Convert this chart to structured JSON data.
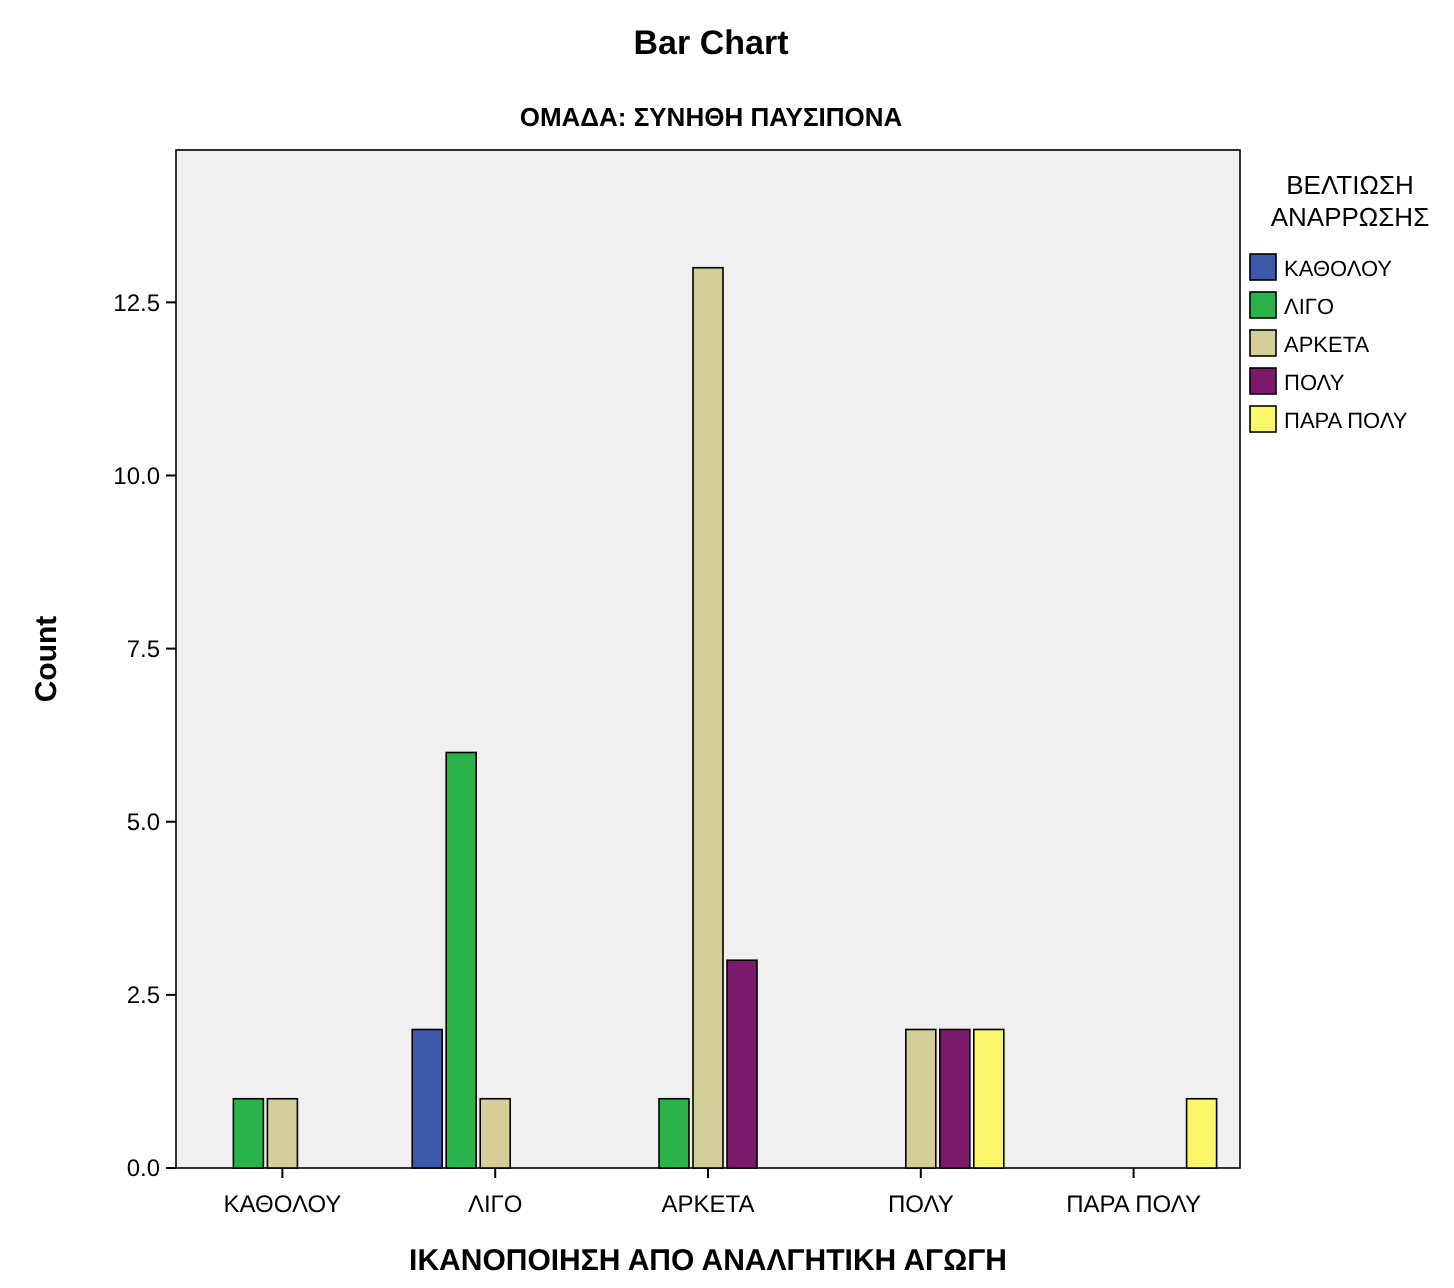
{
  "chart_data": {
    "type": "bar",
    "title": "Bar Chart",
    "subtitle": "ΟΜΑΔΑ: ΣΥΝΗΘΗ ΠΑΥΣΙΠΟΝΑ",
    "xlabel": "ΙΚΑΝΟΠΟΙΗΣΗ ΑΠΟ ΑΝΑΛΓΗΤΙΚΗ ΑΓΩΓΗ",
    "ylabel": "Count",
    "legend_title": "ΒΕΛΤΙΩΣΗ ΑΝΑΡΡΩΣΗΣ",
    "categories": [
      "ΚΑΘΟΛΟΥ",
      "ΛΙΓΟ",
      "ΑΡΚΕΤΑ",
      "ΠΟΛΥ",
      "ΠΑΡΑ ΠΟΛΥ"
    ],
    "series": [
      {
        "name": "ΚΑΘΟΛΟΥ",
        "color": "#3e58ac",
        "values": [
          null,
          2,
          null,
          null,
          null
        ]
      },
      {
        "name": "ΛΙΓΟ",
        "color": "#2bb34b",
        "values": [
          1,
          6,
          1,
          null,
          null
        ]
      },
      {
        "name": "ΑΡΚΕΤΑ",
        "color": "#d4cf98",
        "values": [
          1,
          1,
          13,
          2,
          null
        ]
      },
      {
        "name": "ΠΟΛΥ",
        "color": "#7b1a6b",
        "values": [
          null,
          null,
          3,
          2,
          null
        ]
      },
      {
        "name": "ΠΑΡΑ ΠΟΛΥ",
        "color": "#fbf76a",
        "values": [
          null,
          null,
          null,
          2,
          1
        ]
      }
    ],
    "ylim": [
      0,
      14.7
    ],
    "yticks": [
      {
        "value": 0,
        "label": "0.0"
      },
      {
        "value": 2.5,
        "label": "2.5"
      },
      {
        "value": 5,
        "label": "5.0"
      },
      {
        "value": 7.5,
        "label": "7.5"
      },
      {
        "value": 10,
        "label": "10.0"
      },
      {
        "value": 12.5,
        "label": "12.5"
      }
    ],
    "legend": "right"
  }
}
